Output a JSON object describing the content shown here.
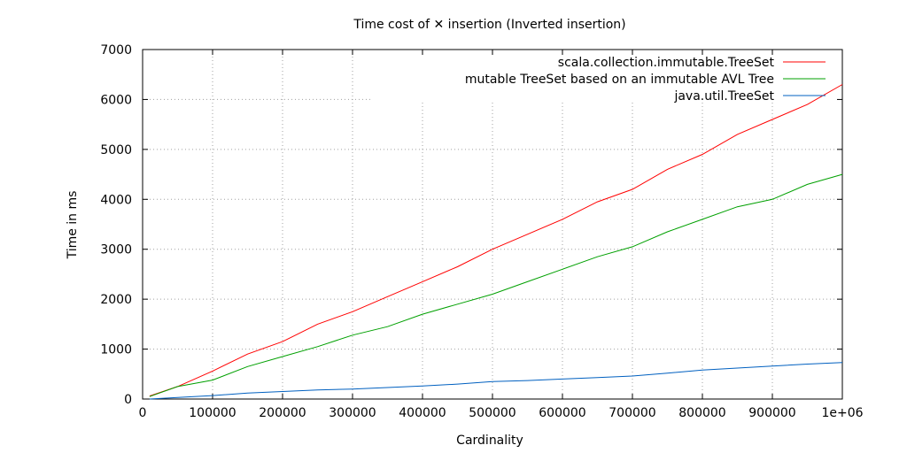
{
  "chart_data": {
    "type": "line",
    "title": "Time cost of ✕ insertion (Inverted insertion)",
    "xlabel": "Cardinality",
    "ylabel": "Time in ms",
    "xlim": [
      0,
      1000000
    ],
    "ylim": [
      0,
      7000
    ],
    "x_ticks": [
      0,
      100000,
      200000,
      300000,
      400000,
      500000,
      600000,
      700000,
      800000,
      900000,
      1000000
    ],
    "x_tick_labels": [
      "0",
      "100000",
      "200000",
      "300000",
      "400000",
      "500000",
      "600000",
      "700000",
      "800000",
      "900000",
      "1e+06"
    ],
    "y_ticks": [
      0,
      1000,
      2000,
      3000,
      4000,
      5000,
      6000,
      7000
    ],
    "y_tick_labels": [
      "0",
      "1000",
      "2000",
      "3000",
      "4000",
      "5000",
      "6000",
      "7000"
    ],
    "grid": true,
    "legend_position": "top-right",
    "x": [
      10000,
      50000,
      100000,
      150000,
      200000,
      250000,
      300000,
      350000,
      400000,
      450000,
      500000,
      550000,
      600000,
      650000,
      700000,
      750000,
      800000,
      850000,
      900000,
      950000,
      1000000
    ],
    "series": [
      {
        "name": "scala.collection.immutable.TreeSet",
        "color": "#ff0000",
        "values": [
          60,
          250,
          560,
          900,
          1150,
          1500,
          1750,
          2050,
          2350,
          2650,
          3000,
          3300,
          3600,
          3950,
          4200,
          4600,
          4900,
          5300,
          5600,
          5900,
          6300
        ]
      },
      {
        "name": "mutable TreeSet based on an immutable AVL Tree",
        "color": "#00a000",
        "values": [
          50,
          250,
          380,
          650,
          850,
          1050,
          1280,
          1450,
          1700,
          1900,
          2100,
          2350,
          2600,
          2850,
          3050,
          3350,
          3600,
          3850,
          4000,
          4300,
          4500
        ]
      },
      {
        "name": "java.util.TreeSet",
        "color": "#0060c0",
        "values": [
          0,
          30,
          70,
          120,
          150,
          180,
          200,
          230,
          260,
          300,
          350,
          370,
          400,
          430,
          460,
          520,
          580,
          620,
          660,
          700,
          730
        ]
      }
    ]
  }
}
